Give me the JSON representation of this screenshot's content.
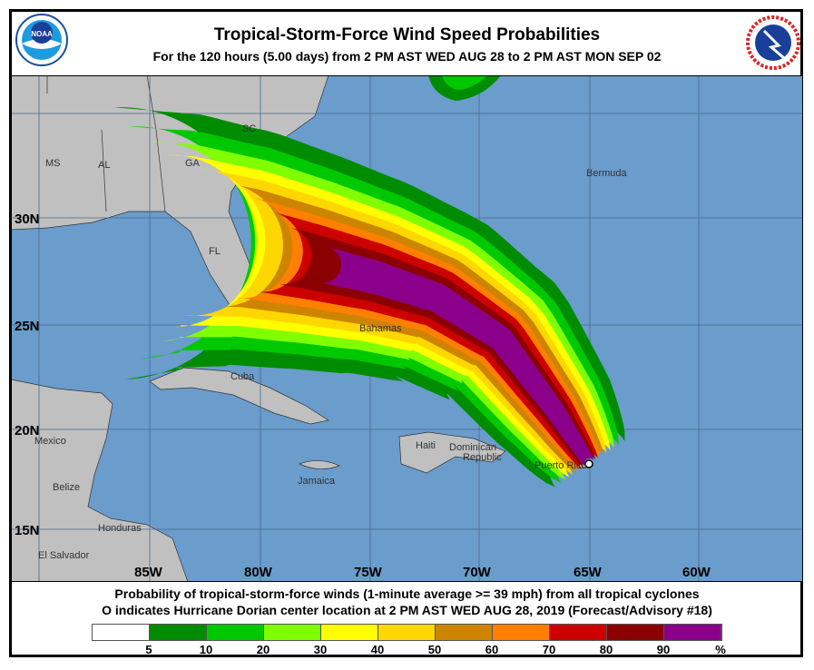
{
  "header": {
    "title": "Tropical-Storm-Force Wind Speed Probabilities",
    "subtitle": "For the 120 hours (5.00 days) from 2 PM AST WED AUG 28 to 2 PM AST MON SEP 02",
    "left_logo": "NOAA",
    "right_logo": "NATIONAL WEATHER SERVICE"
  },
  "map": {
    "colors": {
      "ocean": "#6a9ccc",
      "land": "#c0c0c0",
      "grid": "#4a6a8a"
    },
    "lat_labels": [
      "30N",
      "25N",
      "20N",
      "15N"
    ],
    "lon_labels": [
      "85W",
      "80W",
      "75W",
      "70W",
      "65W",
      "60W"
    ],
    "place_labels": [
      "MS",
      "AL",
      "GA",
      "SC",
      "FL",
      "Bermuda",
      "Bahamas",
      "Cuba",
      "Mexico",
      "Haiti",
      "Dominican",
      "Republic",
      "Puerto Rico",
      "Jamaica",
      "Belize",
      "Honduras",
      "El Salvador"
    ],
    "storm_marker": "Hurricane Dorian center"
  },
  "caption": {
    "line1": "Probability of tropical-storm-force winds (1-minute average >= 39 mph) from all tropical cyclones",
    "line2": "O indicates Hurricane Dorian center location at 2 PM AST WED AUG 28, 2019 (Forecast/Advisory #18)"
  },
  "legend": {
    "colors": [
      "#ffffff",
      "#008c00",
      "#00c800",
      "#80ff00",
      "#ffff00",
      "#ffd700",
      "#cd8500",
      "#ff8000",
      "#cd0000",
      "#8b0000",
      "#8b008b"
    ],
    "ticks": [
      "5",
      "10",
      "20",
      "30",
      "40",
      "50",
      "60",
      "70",
      "80",
      "90",
      "%"
    ]
  }
}
